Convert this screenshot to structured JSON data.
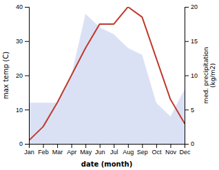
{
  "chart_data": {
    "type": "line",
    "xlabel": "date (month)",
    "ylabel": "max temp (C)",
    "y2label": "med. precipitation\n(kg/m2)",
    "categories": [
      "Jan",
      "Feb",
      "Mar",
      "Apr",
      "May",
      "Jun",
      "Jul",
      "Aug",
      "Sep",
      "Oct",
      "Nov",
      "Dec"
    ],
    "series": [
      {
        "type": "area",
        "axis": "y2",
        "color": "#b0bce8",
        "values": [
          6,
          6,
          6,
          10,
          19,
          17,
          16,
          14,
          13,
          6,
          4,
          8
        ]
      },
      {
        "type": "line",
        "color": "#c0392b",
        "values": [
          1,
          5,
          12,
          20,
          28,
          35,
          35,
          40,
          37,
          25,
          13,
          6
        ]
      }
    ],
    "ylim": [
      0,
      40
    ],
    "yticks": [
      0,
      10,
      20,
      30,
      40
    ],
    "y2lim": [
      0,
      20
    ],
    "y2ticks": [
      0,
      5,
      10,
      15,
      20
    ]
  }
}
